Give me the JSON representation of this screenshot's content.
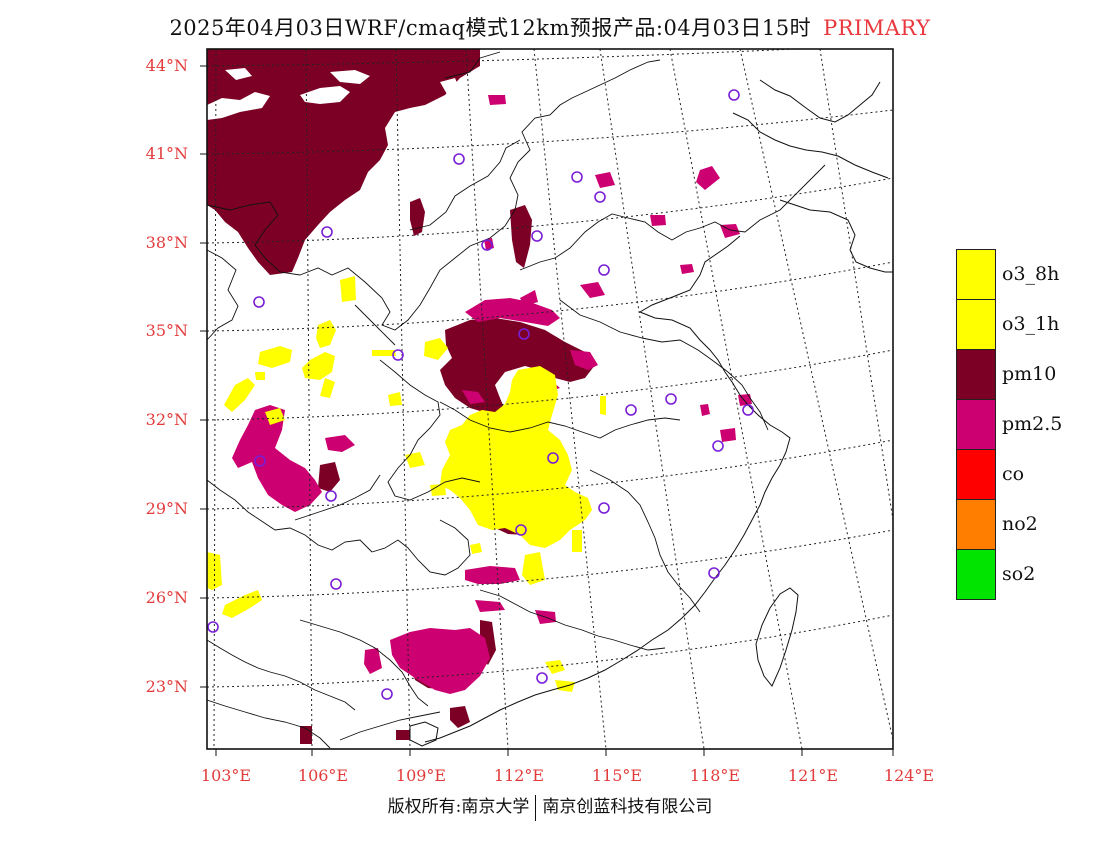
{
  "header": {
    "title": "2025年04月03日WRF/cmaq模式12km预报产品:04月03日15时",
    "highlight": "PRIMARY"
  },
  "map": {
    "lat_labels": [
      "44°N",
      "41°N",
      "38°N",
      "35°N",
      "32°N",
      "29°N",
      "26°N",
      "23°N"
    ],
    "lon_labels": [
      "103°E",
      "106°E",
      "109°E",
      "112°E",
      "115°E",
      "118°E",
      "121°E",
      "124°E"
    ]
  },
  "legend": {
    "items": [
      {
        "label": "o3_8h",
        "color": "#ffff00"
      },
      {
        "label": "o3_1h",
        "color": "#ffff00"
      },
      {
        "label": "pm10",
        "color": "#7c0026"
      },
      {
        "label": "pm2.5",
        "color": "#cc0070"
      },
      {
        "label": "co",
        "color": "#ff0000"
      },
      {
        "label": "no2",
        "color": "#ff7e00"
      },
      {
        "label": "so2",
        "color": "#00e400"
      }
    ]
  },
  "footer": {
    "copyright_left": "版权所有:南京大学",
    "copyright_right": "南京创蓝科技有限公司"
  },
  "colors": {
    "o3": "#ffff00",
    "pm10": "#7c0026",
    "pm25": "#cc0070",
    "station_ring": "#7a1fd6",
    "axis_label": "#e23b3b",
    "title_highlight": "#e8383d"
  }
}
